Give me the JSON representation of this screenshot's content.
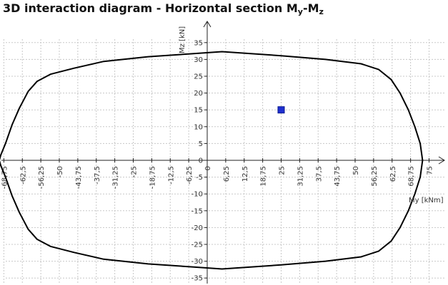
{
  "title": {
    "main": "3D interaction diagram - Horizontal section M",
    "sub1": "y",
    "sep": "-M",
    "sub2": "z"
  },
  "chart_data": {
    "type": "line",
    "title": "3D interaction diagram - Horizontal section My-Mz",
    "xlabel": "My [kNm]",
    "ylabel": "Mz [kN]",
    "xlim": [
      -72,
      76
    ],
    "ylim": [
      -35.5,
      38.5
    ],
    "x_ticks": [
      -68.75,
      -62.5,
      -56.25,
      -50,
      -43.75,
      -37.5,
      -31.25,
      -25,
      -18.75,
      -12.5,
      -6.25,
      0,
      6.25,
      12.5,
      18.75,
      25,
      31.25,
      37.5,
      43.75,
      50,
      56.25,
      62.5,
      68.75,
      75
    ],
    "x_tick_labels": [
      "-68,75",
      "-62,5",
      "-56,25",
      "-50",
      "-43,75",
      "-37,5",
      "-31,25",
      "-25",
      "-18,75",
      "-12,5",
      "-6,25",
      "0",
      "6,25",
      "12,5",
      "18,75",
      "25",
      "31,25",
      "37,5",
      "43,75",
      "50",
      "56,25",
      "62,5",
      "68,75",
      "75"
    ],
    "y_ticks": [
      -35,
      -30,
      -25,
      -20,
      -15,
      -10,
      -5,
      0,
      5,
      10,
      15,
      20,
      25,
      30,
      35
    ],
    "y_tick_labels": [
      "-35",
      "-30",
      "-25",
      "-20",
      "-15",
      "-10",
      "-5",
      "0",
      "5",
      "10",
      "15",
      "20",
      "25",
      "30",
      "35"
    ],
    "grid": true,
    "series": [
      {
        "type": "line",
        "color": "#000000",
        "closed": true,
        "x": [
          72.8,
          72.0,
          70.2,
          68.0,
          65.2,
          62.2,
          58.0,
          52.0,
          40.0,
          25.0,
          5.0,
          -5.0,
          -20.0,
          -35.0,
          -45.0,
          -53.0,
          -57.5,
          -60.5,
          -63.5,
          -66.0,
          -68.2,
          -69.8,
          -70.3,
          -69.8,
          -68.2,
          -66.0,
          -63.5,
          -60.5,
          -57.5,
          -53.0,
          -45.0,
          -35.0,
          -20.0,
          -5.0,
          5.0,
          25.0,
          40.0,
          52.0,
          58.0,
          62.2,
          65.2,
          68.0,
          70.2,
          72.0
        ],
        "y": [
          0,
          5,
          10,
          15,
          20,
          24,
          27,
          28.7,
          30.0,
          31.1,
          32.3,
          31.7,
          30.8,
          29.4,
          27.4,
          25.6,
          23.5,
          20.5,
          15.5,
          10.5,
          5.0,
          1.5,
          0,
          -1.5,
          -5.0,
          -10.5,
          -15.5,
          -20.5,
          -23.5,
          -25.6,
          -27.4,
          -29.4,
          -30.8,
          -31.7,
          -32.3,
          -31.1,
          -30.0,
          -28.7,
          -27,
          -24,
          -20,
          -15,
          -10,
          -5
        ]
      },
      {
        "type": "scatter",
        "color": "#1f2fd0",
        "x": [
          25
        ],
        "y": [
          15
        ]
      }
    ]
  }
}
